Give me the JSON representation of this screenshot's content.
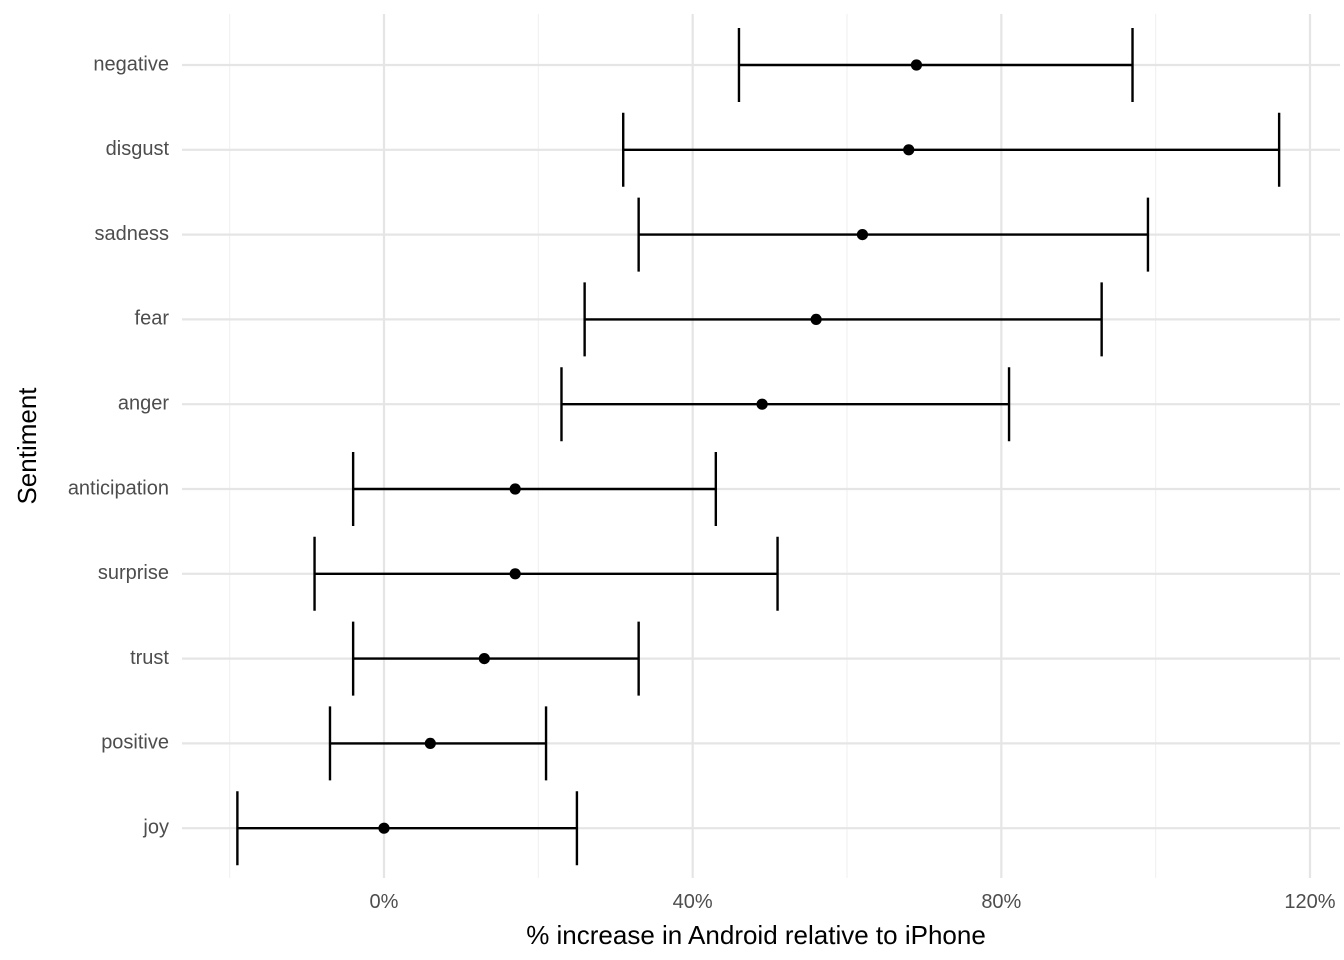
{
  "chart_data": {
    "type": "scatter",
    "subtype": "point-with-horizontal-error-bars",
    "xlabel": "% increase in Android relative to iPhone",
    "ylabel": "Sentiment",
    "xlim": [
      -25,
      125
    ],
    "x_ticks": [
      0,
      40,
      80,
      120
    ],
    "x_tick_labels": [
      "0%",
      "40%",
      "80%",
      "120%"
    ],
    "x_minor_ticks": [
      -20,
      20,
      60,
      100
    ],
    "grid": true,
    "categories": [
      "negative",
      "disgust",
      "sadness",
      "fear",
      "anger",
      "anticipation",
      "surprise",
      "trust",
      "positive",
      "joy"
    ],
    "estimate": [
      69,
      68,
      62,
      56,
      49,
      17,
      17,
      13,
      6,
      0
    ],
    "conf_low": [
      46,
      31,
      33,
      26,
      23,
      -4,
      -9,
      -4,
      -7,
      -19
    ],
    "conf_high": [
      97,
      116,
      99,
      93,
      81,
      43,
      51,
      33,
      21,
      25
    ],
    "colors": {
      "point": "#000000",
      "errorbar": "#000000",
      "grid": "#e5e5e5",
      "tick_text": "#4d4d4d"
    }
  }
}
